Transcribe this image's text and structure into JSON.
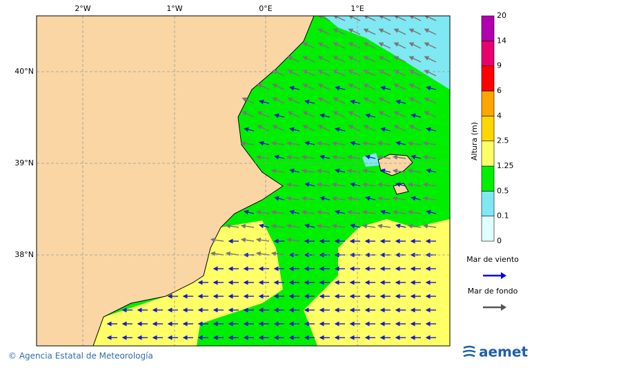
{
  "map": {
    "lon_labels": [
      "2°W",
      "1°W",
      "0°E",
      "1°E"
    ],
    "lat_labels": [
      "40°N",
      "39°N",
      "38°N"
    ]
  },
  "colorbar": {
    "label": "Altura (m)",
    "levels": [
      0,
      0.1,
      0.5,
      1.25,
      2.5,
      4,
      6,
      9,
      14,
      20
    ],
    "colors": [
      "#e0ffff",
      "#80e8f2",
      "#00f000",
      "#ffff66",
      "#ffd700",
      "#ffa500",
      "#ff0000",
      "#e8006e",
      "#b000b0"
    ]
  },
  "legend": [
    {
      "label": "Mar de viento",
      "color": "#0000ee"
    },
    {
      "label": "Mar de fondo",
      "color": "#555555"
    }
  ],
  "footer": {
    "credit": "© Agencia Estatal de Meteorología",
    "logo": "aemet"
  }
}
